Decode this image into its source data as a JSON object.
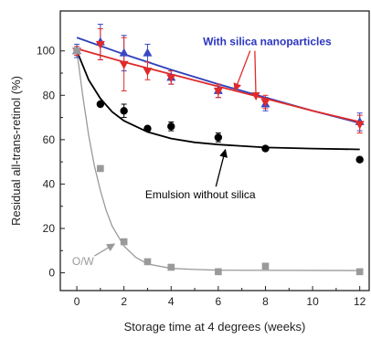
{
  "chart_data": {
    "type": "scatter",
    "xlabel": "Storage time at 4 degrees (weeks)",
    "ylabel": "Residual all-trans-retinol (%)",
    "xlim": [
      -0.7,
      12.4
    ],
    "ylim": [
      -8,
      118
    ],
    "xticks": [
      0,
      2,
      4,
      6,
      8,
      10,
      12
    ],
    "yticks": [
      0,
      20,
      40,
      60,
      80,
      100
    ],
    "grid": false,
    "legend": "none",
    "series": [
      {
        "marker": "triangle-up",
        "color": "#3b48c4",
        "x": [
          0,
          1,
          2,
          3,
          4,
          6,
          8,
          12
        ],
        "y": [
          100,
          104,
          99,
          99,
          88,
          82,
          76,
          68
        ],
        "err": [
          3,
          8,
          8,
          4,
          3,
          3,
          3,
          4
        ],
        "fit": [
          [
            0,
            106
          ],
          [
            2,
            98.5
          ],
          [
            4,
            91.5
          ],
          [
            6,
            85
          ],
          [
            8,
            79
          ],
          [
            10,
            73
          ],
          [
            12,
            67.5
          ]
        ],
        "fit_color": "#2f3fb8"
      },
      {
        "marker": "triangle-down",
        "color": "#e02a2a",
        "x": [
          0,
          1,
          2,
          3,
          4,
          6,
          8,
          12
        ],
        "y": [
          100,
          103,
          94,
          91,
          88,
          82,
          77,
          67
        ],
        "err": [
          2,
          7,
          12,
          4,
          3,
          3,
          3,
          4
        ],
        "fit": [
          [
            0,
            101
          ],
          [
            2,
            95
          ],
          [
            4,
            89.5
          ],
          [
            6,
            84
          ],
          [
            8,
            78.5
          ],
          [
            10,
            73
          ],
          [
            12,
            68
          ]
        ],
        "fit_color": "#e02a2a"
      },
      {
        "marker": "circle",
        "color": "#000000",
        "x": [
          1,
          2,
          3,
          4,
          6,
          8,
          12
        ],
        "y": [
          76,
          73,
          65,
          66,
          61,
          56,
          51
        ],
        "err": [
          0,
          3,
          0,
          2,
          2,
          0,
          0
        ],
        "fit": [
          [
            0,
            100
          ],
          [
            0.5,
            87
          ],
          [
            1,
            78.5
          ],
          [
            1.5,
            72.5
          ],
          [
            2,
            68.5
          ],
          [
            3,
            63.5
          ],
          [
            4,
            60.5
          ],
          [
            5,
            58.8
          ],
          [
            6,
            57.8
          ],
          [
            8,
            56.5
          ],
          [
            10,
            56
          ],
          [
            12,
            55.6
          ]
        ],
        "fit_color": "#000000"
      },
      {
        "marker": "square",
        "color": "#9a9a9a",
        "x": [
          0,
          1,
          2,
          3,
          4,
          6,
          8,
          12
        ],
        "y": [
          100,
          47,
          14,
          5,
          2.5,
          0.5,
          3,
          0.5
        ],
        "err": [
          0,
          0,
          0,
          0,
          0,
          0,
          0,
          0
        ],
        "fit": [
          [
            0,
            100
          ],
          [
            0.25,
            80
          ],
          [
            0.5,
            62
          ],
          [
            0.75,
            48
          ],
          [
            1,
            37
          ],
          [
            1.25,
            28
          ],
          [
            1.5,
            21
          ],
          [
            2,
            12
          ],
          [
            2.5,
            7
          ],
          [
            3,
            4
          ],
          [
            4,
            2
          ],
          [
            5,
            1.5
          ],
          [
            6,
            1.2
          ],
          [
            12,
            1
          ]
        ],
        "fit_color": "#9a9a9a"
      }
    ],
    "annotations": [
      {
        "text": "With silica nanoparticles",
        "color": "#2b35c0",
        "bold": true,
        "x": 5.35,
        "y": 102.5,
        "arrow_color": "#e02a2a",
        "arrow_to": [
          [
            6.7,
            82
          ],
          [
            7.6,
            78
          ]
        ]
      },
      {
        "text": "Emulsion without silica",
        "color": "#000000",
        "bold": false,
        "x": 2.9,
        "y": 33.5,
        "arrow_color": "#000000",
        "arrow_to": [
          [
            6.3,
            55.5
          ]
        ]
      },
      {
        "text": "O/W",
        "color": "#9a9a9a",
        "bold": false,
        "x": -0.2,
        "y": 3.5,
        "arrow_color": "#9a9a9a",
        "arrow_to": [
          [
            1.6,
            13
          ]
        ]
      }
    ]
  }
}
